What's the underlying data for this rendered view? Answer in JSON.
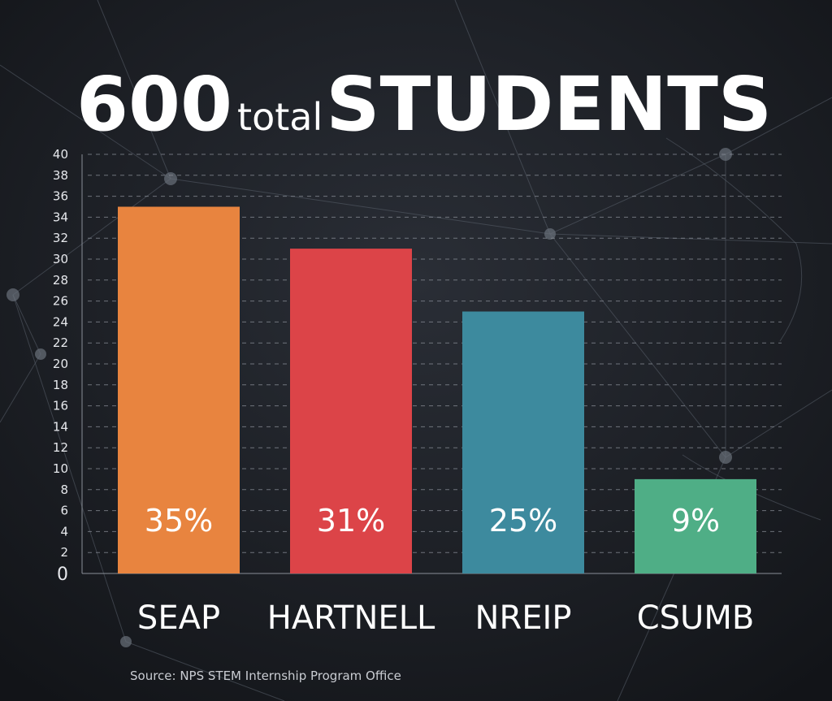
{
  "chart_data": {
    "type": "bar",
    "title": {
      "number": "600",
      "small": "total",
      "large": "STUDENTS"
    },
    "categories": [
      "SEAP",
      "HARTNELL",
      "NREIP",
      "CSUMB"
    ],
    "values": [
      35,
      31,
      25,
      9
    ],
    "value_labels": [
      "35%",
      "31%",
      "25%",
      "9%"
    ],
    "colors": [
      "#e8843f",
      "#dc4448",
      "#3d8a9e",
      "#4fae86"
    ],
    "ylim": [
      0,
      40
    ],
    "yticks": [
      0,
      2,
      4,
      6,
      8,
      10,
      12,
      14,
      16,
      18,
      20,
      22,
      24,
      26,
      28,
      30,
      32,
      34,
      36,
      38,
      40
    ],
    "grid": true,
    "source": "Source: NPS STEM Internship Program Office"
  }
}
